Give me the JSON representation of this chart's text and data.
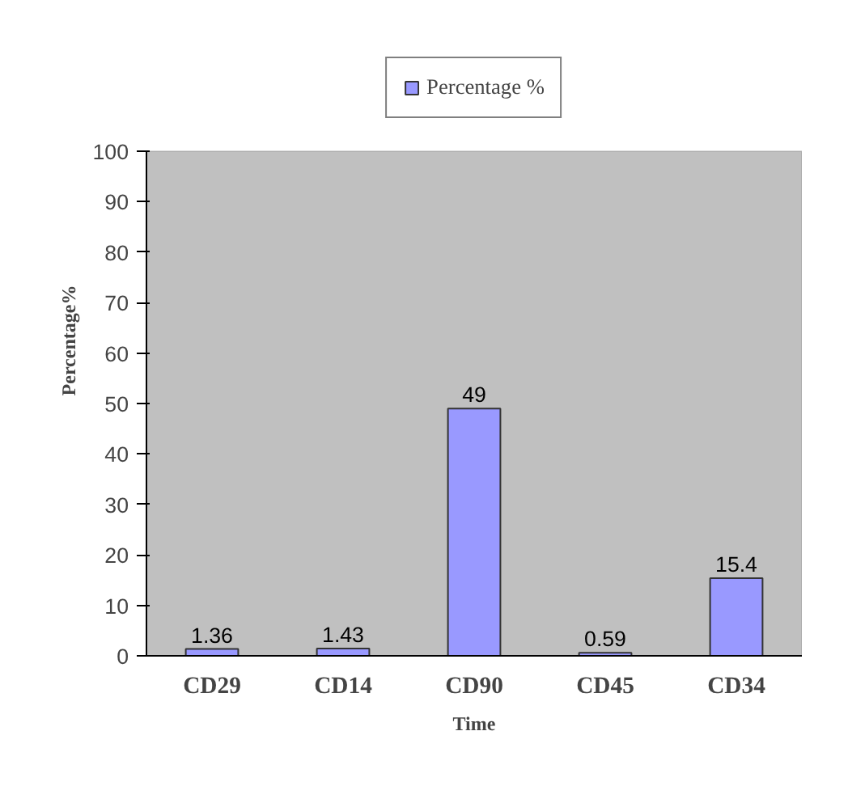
{
  "chart_data": {
    "type": "bar",
    "xlabel": "Time",
    "ylabel": "Percentage%",
    "categories": [
      "CD29",
      "CD14",
      "CD90",
      "CD45",
      "CD34"
    ],
    "series": [
      {
        "name": "Percentage %",
        "color": "#9999ff",
        "values": [
          1.36,
          1.43,
          49,
          0.59,
          15.4
        ]
      }
    ],
    "ylim": [
      0,
      100
    ],
    "yticks": [
      0,
      10,
      20,
      30,
      40,
      50,
      60,
      70,
      80,
      90,
      100
    ],
    "grid": false,
    "legend": "top",
    "data_labels": true
  }
}
